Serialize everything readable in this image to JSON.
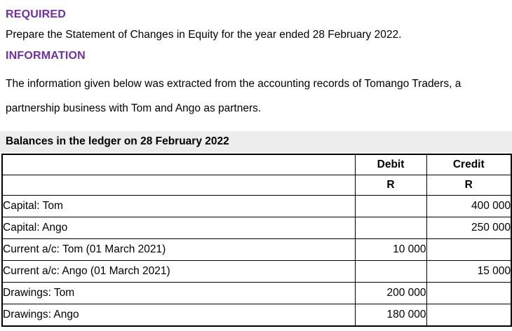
{
  "document": {
    "required": {
      "heading": "REQUIRED",
      "body": "Prepare the Statement of Changes in Equity for the year ended 28 February 2022."
    },
    "information": {
      "heading": "INFORMATION",
      "body": "The information given below was extracted from the accounting records of Tomango Traders, a partnership business with Tom and Ango as partners."
    },
    "ledger": {
      "caption": "Balances in the ledger on 28 February 2022",
      "columns": {
        "debit": "Debit",
        "credit": "Credit"
      },
      "currency_symbol": "R",
      "rows": [
        {
          "label": "Capital: Tom",
          "debit": "",
          "credit": "400 000"
        },
        {
          "label": "Capital: Ango",
          "debit": "",
          "credit": "250 000"
        },
        {
          "label": "Current a/c: Tom (01 March 2021)",
          "debit": "10 000",
          "credit": ""
        },
        {
          "label": "Current a/c: Ango (01 March 2021)",
          "debit": "",
          "credit": "15 000"
        },
        {
          "label": "Drawings: Tom",
          "debit": "200 000",
          "credit": ""
        },
        {
          "label": "Drawings: Ango",
          "debit": "180 000",
          "credit": ""
        }
      ]
    }
  },
  "colors": {
    "heading_purple": "#7030A0",
    "caption_background": "#EDEDED",
    "table_border": "#000000",
    "text": "#000000"
  }
}
